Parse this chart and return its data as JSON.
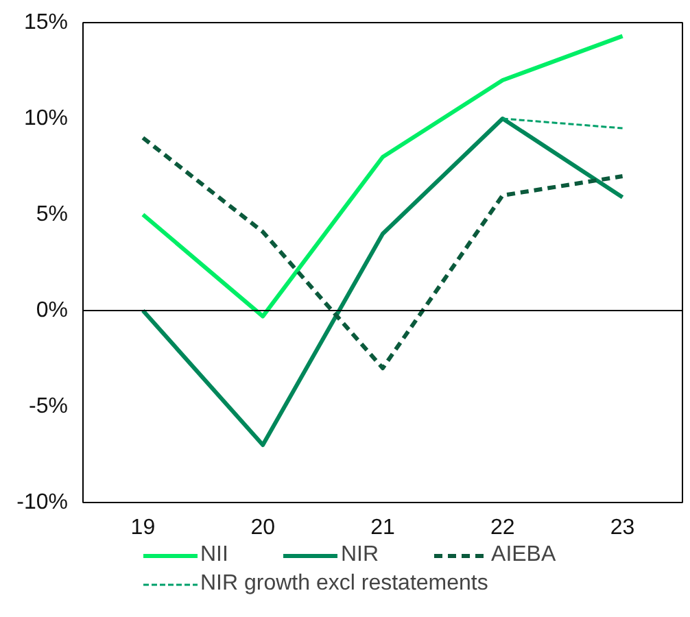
{
  "chart_data": {
    "type": "line",
    "x": [
      19,
      20,
      21,
      22,
      23
    ],
    "xlim": [
      18.5,
      23.5
    ],
    "xticks": [
      19,
      20,
      21,
      22,
      23
    ],
    "ylim": [
      -10,
      15
    ],
    "yticks": [
      {
        "value": -10,
        "label": "-10%"
      },
      {
        "value": -5,
        "label": "-5%"
      },
      {
        "value": 0,
        "label": "0%"
      },
      {
        "value": 5,
        "label": "5%"
      },
      {
        "value": 10,
        "label": "10%"
      },
      {
        "value": 15,
        "label": "15%"
      }
    ],
    "series": [
      {
        "name": "NII",
        "color": "#00ee66",
        "values": [
          5.0,
          -0.3,
          8.0,
          12.0,
          14.3
        ],
        "line_style": "solid"
      },
      {
        "name": "NIR",
        "color": "#00875a",
        "values": [
          0.0,
          -7.0,
          4.0,
          10.0,
          5.9
        ],
        "line_style": "solid"
      },
      {
        "name": "AIEBA",
        "color": "#0b5a3c",
        "values": [
          9.0,
          4.1,
          -3.0,
          6.0,
          7.0
        ],
        "line_style": "dashed"
      },
      {
        "name": "NIR growth excl restatements",
        "color": "#00a06a",
        "x": [
          22,
          23
        ],
        "values": [
          10.0,
          9.5
        ],
        "line_style": "dotted"
      }
    ],
    "ref_lines": [
      {
        "axis": "y",
        "value": 0,
        "color": "#000000"
      }
    ],
    "grid": false,
    "legend": "bottom"
  }
}
